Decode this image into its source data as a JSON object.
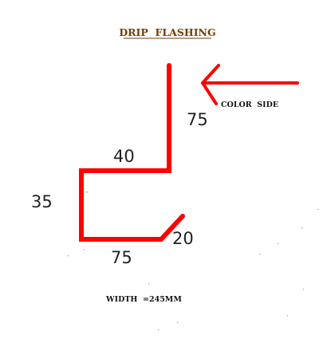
{
  "title": "DRIP  FLASHING",
  "color_side_label": "COLOR  SIDE",
  "dimensions": {
    "top_vertical": "75",
    "upper_horizontal": "40",
    "left_vertical": "35",
    "bottom_horizontal": "75",
    "lip": "20"
  },
  "width_label": "WIDTH  =245MM",
  "colors": {
    "profile": "#ff0000",
    "arrow": "#ff0000",
    "title": "#7a3b00",
    "text": "#111111"
  }
}
